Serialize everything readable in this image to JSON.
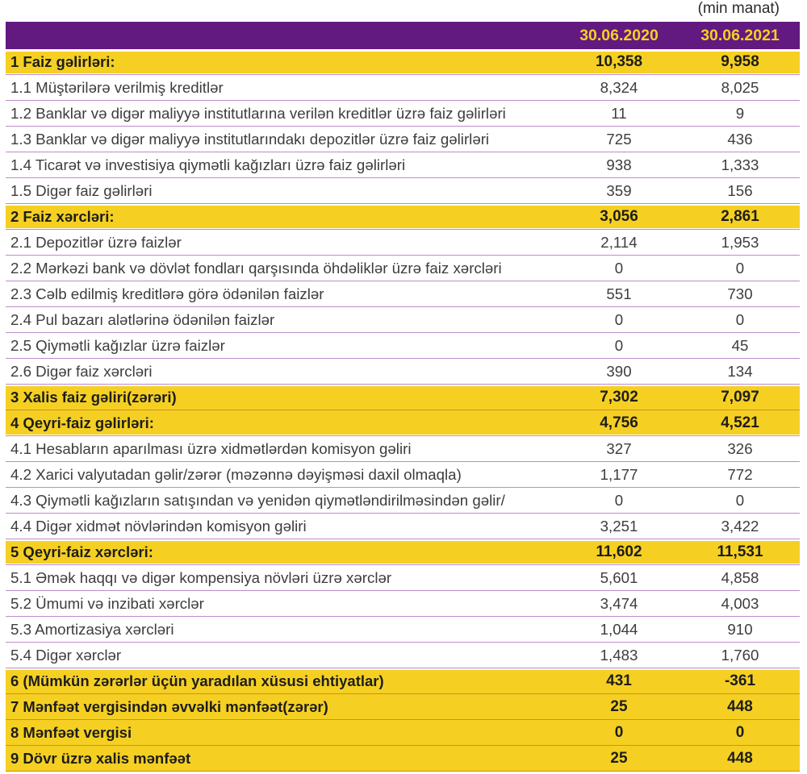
{
  "document": {
    "unit_note": "(min manat)"
  },
  "colors": {
    "header_purple": "#621980",
    "section_yellow": "#f5d023",
    "line_lavender": "#bd8cca",
    "line_amber": "#ce8f1e"
  },
  "table": {
    "columns": [
      "30.06.2020",
      "30.06.2021"
    ],
    "rows": [
      {
        "label": "1 Faiz gəlirləri:",
        "v2020": "10,358",
        "v2021": "9,958",
        "type": "section"
      },
      {
        "label": "1.1 Müştərilərə verilmiş kreditlər",
        "v2020": "8,324",
        "v2021": "8,025",
        "type": "item"
      },
      {
        "label": "1.2 Banklar və digər maliyyə institutlarına verilən kreditlər üzrə faiz gəlirləri",
        "v2020": "11",
        "v2021": "9",
        "type": "item"
      },
      {
        "label": "1.3 Banklar və digər maliyyə institutlarındakı depozitlər üzrə faiz gəlirləri",
        "v2020": "725",
        "v2021": "436",
        "type": "item"
      },
      {
        "label": "1.4 Ticarət və investisiya qiymətli kağızları üzrə faiz gəlirləri",
        "v2020": "938",
        "v2021": "1,333",
        "type": "item"
      },
      {
        "label": "1.5 Digər faiz gəlirləri",
        "v2020": "359",
        "v2021": "156",
        "type": "item"
      },
      {
        "label": "2 Faiz xərcləri:",
        "v2020": "3,056",
        "v2021": "2,861",
        "type": "section"
      },
      {
        "label": "2.1 Depozitlər üzrə faizlər",
        "v2020": "2,114",
        "v2021": "1,953",
        "type": "item"
      },
      {
        "label": "2.2 Mərkəzi bank və dövlət fondları qarşısında öhdəliklər üzrə faiz xərcləri",
        "v2020": "0",
        "v2021": "0",
        "type": "item"
      },
      {
        "label": "2.3 Cəlb edilmiş kreditlərə görə ödənilən faizlər",
        "v2020": "551",
        "v2021": "730",
        "type": "item"
      },
      {
        "label": "2.4 Pul bazarı alətlərinə ödənilən faizlər",
        "v2020": "0",
        "v2021": "0",
        "type": "item"
      },
      {
        "label": "2.5 Qiymətli kağızlar üzrə faizlər",
        "v2020": "0",
        "v2021": "45",
        "type": "item"
      },
      {
        "label": "2.6 Digər faiz xərcləri",
        "v2020": "390",
        "v2021": "134",
        "type": "item"
      },
      {
        "label": "3 Xalis faiz gəliri(zərəri)",
        "v2020": "7,302",
        "v2021": "7,097",
        "type": "section"
      },
      {
        "label": "4 Qeyri-faiz gəlirləri:",
        "v2020": "4,756",
        "v2021": "4,521",
        "type": "section"
      },
      {
        "label": "4.1 Hesabların aparılması üzrə xidmətlərdən komisyon gəliri",
        "v2020": "327",
        "v2021": "326",
        "type": "item"
      },
      {
        "label": "4.2 Xarici valyutadan gəlir/zərər (məzənnə dəyişməsi daxil olmaqla)",
        "v2020": "1,177",
        "v2021": "772",
        "type": "item"
      },
      {
        "label": "4.3 Qiymətli kağızların satışından və yenidən qiymətləndirilməsindən gəlir/",
        "v2020": "0",
        "v2021": "0",
        "type": "item"
      },
      {
        "label": "4.4 Digər xidmət növlərindən komisyon gəliri",
        "v2020": "3,251",
        "v2021": "3,422",
        "type": "item"
      },
      {
        "label": "5 Qeyri-faiz xərcləri:",
        "v2020": "11,602",
        "v2021": "11,531",
        "type": "section"
      },
      {
        "label": "5.1 Əmək haqqı və digər kompensiya növləri üzrə xərclər",
        "v2020": "5,601",
        "v2021": "4,858",
        "type": "item"
      },
      {
        "label": "5.2 Ümumi və inzibati xərclər",
        "v2020": "3,474",
        "v2021": "4,003",
        "type": "item"
      },
      {
        "label": "5.3 Amortizasiya xərcləri",
        "v2020": "1,044",
        "v2021": "910",
        "type": "item"
      },
      {
        "label": "5.4 Digər xərclər",
        "v2020": "1,483",
        "v2021": "1,760",
        "type": "item"
      },
      {
        "label": "6 (Mümkün zərərlər üçün yaradılan xüsusi ehtiyatlar)",
        "v2020": "431",
        "v2021": "-361",
        "type": "section"
      },
      {
        "label": "7 Mənfəət vergisindən əvvəlki mənfəət(zərər)",
        "v2020": "25",
        "v2021": "448",
        "type": "section"
      },
      {
        "label": "8 Mənfəət vergisi",
        "v2020": "0",
        "v2021": "0",
        "type": "section"
      },
      {
        "label": "9 Dövr üzrə xalis mənfəət",
        "v2020": "25",
        "v2021": "448",
        "type": "section"
      }
    ]
  }
}
